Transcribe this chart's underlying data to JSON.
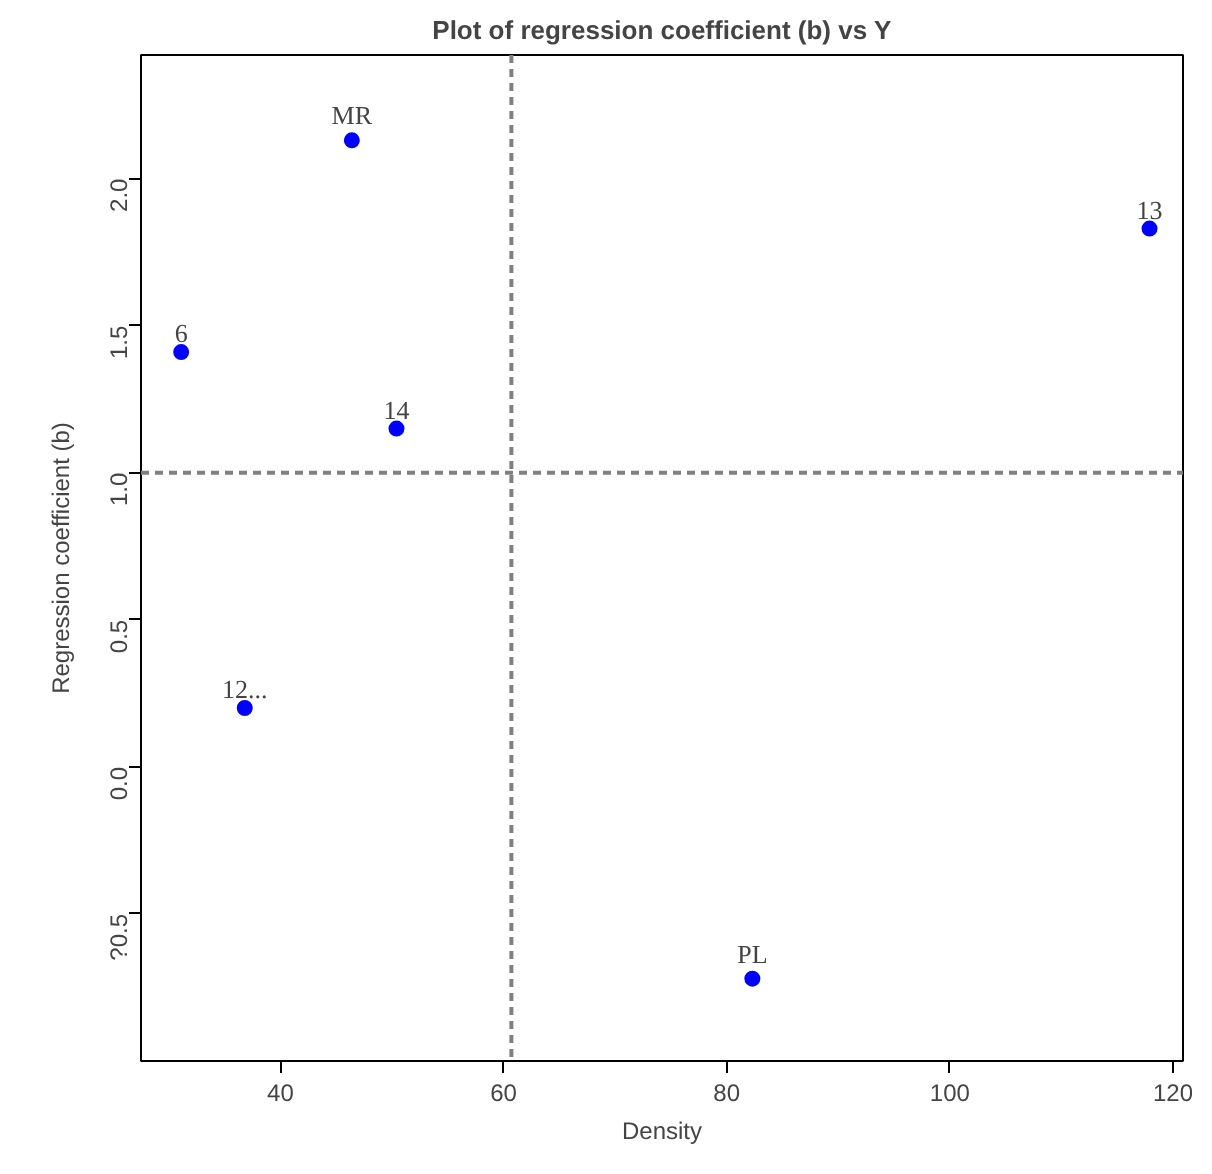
{
  "chart_data": {
    "type": "scatter",
    "title": "Plot of regression coefficient (b) vs Y",
    "xlabel": "Density",
    "ylabel": "Regression coefficient (b)",
    "x": [
      46.4,
      31.1,
      50.4,
      36.8,
      82.3,
      117.9
    ],
    "series": [
      {
        "color": "#0000ff",
        "values": [
          2.13,
          1.41,
          1.15,
          0.2,
          -0.72,
          1.83
        ]
      }
    ],
    "annotations": [
      {
        "text": "MR",
        "x": 46.4,
        "y": 2.13
      },
      {
        "text": "6",
        "x": 31.1,
        "y": 1.41
      },
      {
        "text": "14",
        "x": 50.4,
        "y": 1.15
      },
      {
        "text": "12...",
        "x": 36.8,
        "y": 0.2
      },
      {
        "text": "PL",
        "x": 82.3,
        "y": -0.72
      },
      {
        "text": "13",
        "x": 117.9,
        "y": 1.83
      }
    ],
    "ref_lines": [
      {
        "axis": "x",
        "value": 60.7,
        "color": "#808080",
        "line_style": "dashed"
      },
      {
        "axis": "y",
        "value": 1.0,
        "color": "#808080",
        "line_style": "dashed"
      }
    ],
    "xlim": [
      27.5,
      120.9
    ],
    "ylim": [
      -1.0,
      2.42
    ],
    "xticks": [
      40,
      60,
      80,
      100,
      120
    ],
    "yticks": [
      {
        "value": -0.5,
        "label": "?0.5"
      },
      {
        "value": 0.0,
        "label": "0.0"
      },
      {
        "value": 0.5,
        "label": "0.5"
      },
      {
        "value": 1.0,
        "label": "1.0"
      },
      {
        "value": 1.5,
        "label": "1.5"
      },
      {
        "value": 2.0,
        "label": "2.0"
      }
    ],
    "grid": false,
    "marker": "circle"
  }
}
